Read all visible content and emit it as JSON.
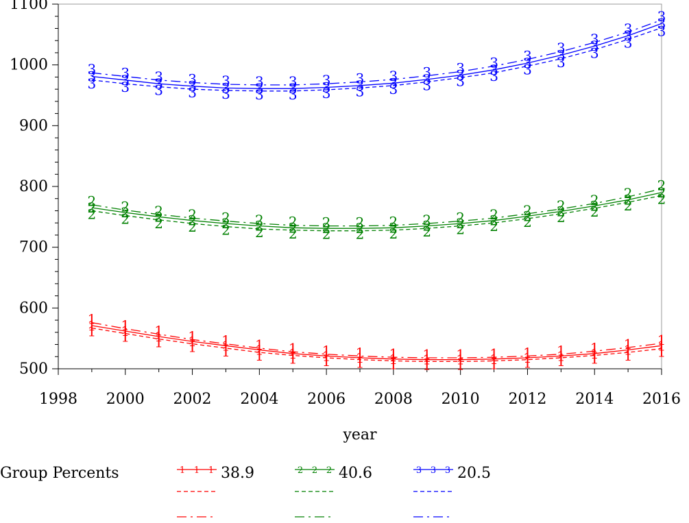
{
  "chart_data": {
    "type": "line",
    "title": "",
    "xlabel": "year",
    "ylabel": "",
    "xlim": [
      1998,
      2016
    ],
    "ylim": [
      500,
      1100
    ],
    "x_ticks": [
      "1998",
      "2000",
      "2002",
      "2004",
      "2006",
      "2008",
      "2010",
      "2012",
      "2014",
      "2016"
    ],
    "y_ticks": [
      "500",
      "600",
      "700",
      "800",
      "900",
      "1000",
      "1100"
    ],
    "grid": false,
    "x": [
      1999,
      2000,
      2001,
      2002,
      2003,
      2004,
      2005,
      2006,
      2007,
      2008,
      2009,
      2010,
      2011,
      2012,
      2013,
      2014,
      2015,
      2016
    ],
    "legend": {
      "title": "Group Percents",
      "placement": "bottom",
      "entries": [
        "38.9",
        "40.6",
        "20.5"
      ]
    },
    "groups": [
      {
        "marker": "1",
        "color": "#ff0000",
        "percent": "38.9",
        "solid": [
          571,
          562,
          553,
          545,
          538,
          531,
          525,
          521,
          518,
          516,
          515,
          515,
          516,
          518,
          521,
          525,
          531,
          538
        ],
        "dashed": [
          567,
          558,
          549,
          541,
          534,
          527,
          522,
          518,
          515,
          513,
          512,
          512,
          513,
          515,
          518,
          522,
          527,
          533
        ],
        "dash_dot": [
          576,
          566,
          557,
          548,
          541,
          534,
          528,
          524,
          521,
          519,
          518,
          518,
          519,
          521,
          524,
          529,
          535,
          542
        ]
      },
      {
        "marker": "2",
        "color": "#008000",
        "percent": "40.6",
        "solid": [
          765,
          757,
          750,
          744,
          739,
          735,
          732,
          731,
          731,
          732,
          735,
          739,
          744,
          751,
          759,
          768,
          778,
          790
        ],
        "dashed": [
          760,
          752,
          745,
          739,
          734,
          730,
          728,
          727,
          727,
          728,
          731,
          735,
          740,
          747,
          755,
          764,
          774,
          785
        ],
        "dash_dot": [
          770,
          761,
          754,
          748,
          743,
          739,
          736,
          735,
          735,
          736,
          739,
          743,
          748,
          755,
          763,
          772,
          783,
          796
        ]
      },
      {
        "marker": "3",
        "color": "#0000ff",
        "percent": "20.5",
        "solid": [
          981,
          975,
          969,
          965,
          962,
          961,
          961,
          963,
          966,
          970,
          976,
          983,
          992,
          1003,
          1016,
          1031,
          1048,
          1068
        ],
        "dashed": [
          975,
          969,
          964,
          960,
          958,
          957,
          957,
          959,
          962,
          966,
          972,
          979,
          987,
          998,
          1010,
          1025,
          1042,
          1061
        ],
        "dash_dot": [
          987,
          981,
          975,
          971,
          968,
          967,
          967,
          969,
          972,
          976,
          982,
          989,
          998,
          1009,
          1022,
          1037,
          1054,
          1074
        ]
      }
    ]
  }
}
